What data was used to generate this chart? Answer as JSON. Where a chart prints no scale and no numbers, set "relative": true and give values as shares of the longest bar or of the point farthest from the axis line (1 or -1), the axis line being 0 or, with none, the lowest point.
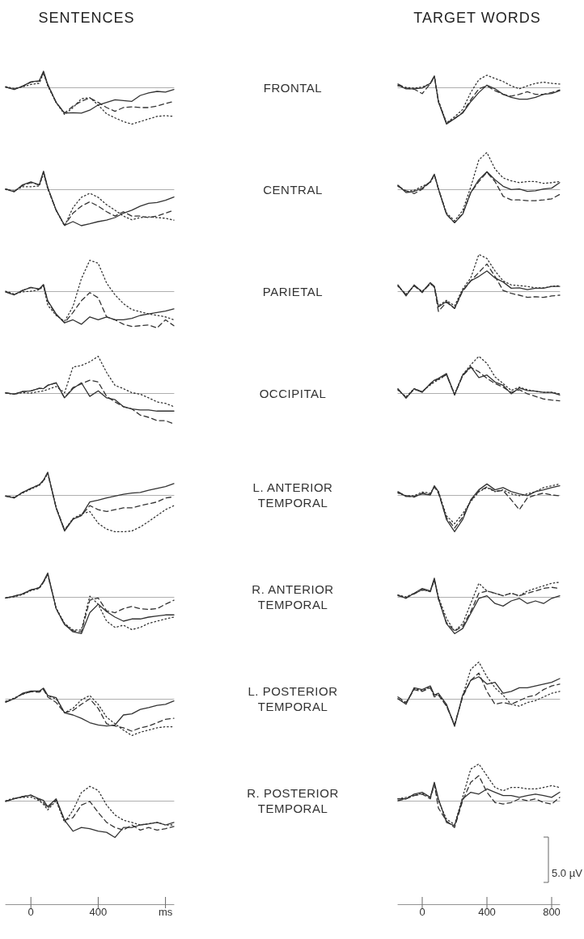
{
  "chart_data": [
    {
      "type": "line",
      "relative": true,
      "annotations": [
        "SENTENCES"
      ],
      "x": [
        -150,
        -100,
        -50,
        0,
        50,
        75,
        100,
        150,
        200,
        250,
        300,
        350,
        400,
        450,
        500,
        550,
        600,
        650,
        700,
        750,
        800,
        850
      ],
      "xlim": [
        -150,
        850
      ],
      "tick_labels": false,
      "series": [
        {
          "color": "#333333",
          "line_style": "solid",
          "values": [
            0.01,
            -0.06,
            0.03,
            0.15,
            0.18,
            0.44,
            0.08,
            -0.41,
            -0.7,
            -0.69,
            -0.7,
            -0.62,
            -0.48,
            -0.41,
            -0.34,
            -0.36,
            -0.38,
            -0.22,
            -0.15,
            -0.11,
            -0.13,
            -0.06
          ]
        },
        {
          "color": "#333333",
          "line_style": "dashed",
          "values": [
            0.01,
            -0.05,
            0.03,
            0.14,
            0.17,
            0.4,
            0.07,
            -0.41,
            -0.7,
            -0.51,
            -0.38,
            -0.29,
            -0.41,
            -0.55,
            -0.65,
            -0.55,
            -0.53,
            -0.55,
            -0.55,
            -0.51,
            -0.44,
            -0.38
          ]
        },
        {
          "color": "#333333",
          "line_style": "dotted",
          "values": [
            0.02,
            -0.03,
            0.01,
            0.08,
            0.11,
            0.39,
            0.04,
            -0.41,
            -0.74,
            -0.55,
            -0.31,
            -0.28,
            -0.48,
            -0.72,
            -0.83,
            -0.93,
            -1.0,
            -0.93,
            -0.86,
            -0.79,
            -0.77,
            -0.79
          ]
        }
      ]
    },
    {
      "type": "line",
      "relative": true,
      "annotations": [
        "TARGET WORDS"
      ],
      "x": [
        -150,
        -100,
        -50,
        0,
        50,
        75,
        100,
        150,
        200,
        250,
        300,
        350,
        400,
        450,
        500,
        550,
        600,
        650,
        700,
        750,
        800,
        850
      ],
      "xlim": [
        -150,
        850
      ],
      "tick_labels": false,
      "series": [
        {
          "color": "#333333",
          "line_style": "solid",
          "values": [
            0.06,
            -0.04,
            -0.04,
            -0.02,
            0.11,
            0.31,
            -0.39,
            -1.0,
            -0.85,
            -0.7,
            -0.39,
            -0.14,
            0.06,
            -0.04,
            -0.19,
            -0.27,
            -0.32,
            -0.32,
            -0.27,
            -0.19,
            -0.17,
            -0.09
          ]
        },
        {
          "color": "#333333",
          "line_style": "dashed",
          "values": [
            0.09,
            -0.02,
            -0.05,
            -0.17,
            0.1,
            0.3,
            -0.39,
            -0.97,
            -0.85,
            -0.68,
            -0.34,
            -0.04,
            0.04,
            -0.09,
            -0.19,
            -0.24,
            -0.19,
            -0.12,
            -0.19,
            -0.19,
            -0.14,
            -0.07
          ]
        },
        {
          "color": "#333333",
          "line_style": "dotted",
          "values": [
            0.04,
            0.0,
            -0.02,
            0.01,
            0.1,
            0.29,
            -0.35,
            -0.97,
            -0.8,
            -0.6,
            -0.14,
            0.21,
            0.33,
            0.24,
            0.16,
            0.04,
            -0.04,
            0.04,
            0.11,
            0.14,
            0.11,
            0.09
          ]
        }
      ]
    },
    {
      "type": "line",
      "relative": true,
      "x": [
        -150,
        -100,
        -50,
        0,
        50,
        75,
        100,
        150,
        200,
        250,
        300,
        350,
        400,
        450,
        500,
        550,
        600,
        650,
        700,
        750,
        800,
        850
      ],
      "xlim": [
        -150,
        850
      ],
      "tick_labels": false,
      "series": [
        {
          "color": "#333333",
          "line_style": "solid",
          "values": [
            0.01,
            -0.07,
            0.12,
            0.2,
            0.12,
            0.49,
            0.05,
            -0.57,
            -0.98,
            -0.88,
            -0.99,
            -0.94,
            -0.88,
            -0.84,
            -0.77,
            -0.65,
            -0.57,
            -0.46,
            -0.38,
            -0.36,
            -0.3,
            -0.21
          ]
        },
        {
          "color": "#333333",
          "line_style": "dashed",
          "values": [
            0.01,
            -0.06,
            0.1,
            0.18,
            0.12,
            0.47,
            0.04,
            -0.57,
            -0.98,
            -0.65,
            -0.46,
            -0.34,
            -0.46,
            -0.61,
            -0.73,
            -0.61,
            -0.73,
            -0.73,
            -0.77,
            -0.73,
            -0.65,
            -0.57
          ]
        },
        {
          "color": "#333333",
          "line_style": "dotted",
          "values": [
            -0.01,
            -0.05,
            0.07,
            0.07,
            0.09,
            0.43,
            0.01,
            -0.57,
            -1.0,
            -0.5,
            -0.22,
            -0.11,
            -0.22,
            -0.42,
            -0.57,
            -0.73,
            -0.83,
            -0.77,
            -0.75,
            -0.77,
            -0.79,
            -0.84
          ]
        }
      ]
    },
    {
      "type": "line",
      "relative": true,
      "x": [
        -150,
        -100,
        -50,
        0,
        50,
        75,
        100,
        150,
        200,
        250,
        300,
        350,
        400,
        450,
        500,
        550,
        600,
        650,
        700,
        750,
        800,
        850
      ],
      "xlim": [
        -150,
        850
      ],
      "tick_labels": false,
      "series": [
        {
          "color": "#333333",
          "line_style": "solid",
          "values": [
            0.11,
            -0.09,
            -0.06,
            0.03,
            0.21,
            0.41,
            0.01,
            -0.68,
            -0.91,
            -0.68,
            -0.09,
            0.26,
            0.48,
            0.26,
            0.08,
            -0.01,
            0.01,
            -0.06,
            -0.04,
            0.01,
            0.03,
            0.18
          ]
        },
        {
          "color": "#333333",
          "line_style": "dashed",
          "values": [
            0.08,
            -0.04,
            -0.12,
            0.0,
            0.2,
            0.4,
            0.0,
            -0.68,
            -0.91,
            -0.66,
            -0.09,
            0.21,
            0.46,
            0.21,
            -0.19,
            -0.29,
            -0.29,
            -0.31,
            -0.31,
            -0.29,
            -0.26,
            -0.14
          ]
        },
        {
          "color": "#333333",
          "line_style": "dotted",
          "values": [
            0.1,
            -0.06,
            -0.03,
            0.08,
            0.18,
            0.38,
            0.02,
            -0.64,
            -0.86,
            -0.58,
            0.06,
            0.8,
            1.0,
            0.55,
            0.31,
            0.23,
            0.18,
            0.21,
            0.21,
            0.16,
            0.18,
            0.21
          ]
        }
      ]
    },
    {
      "type": "line",
      "relative": true,
      "x": [
        -150,
        -100,
        -50,
        0,
        50,
        75,
        100,
        150,
        200,
        250,
        300,
        350,
        400,
        450,
        500,
        550,
        600,
        650,
        700,
        750,
        800,
        850
      ],
      "xlim": [
        -150,
        850
      ],
      "tick_labels": false,
      "series": [
        {
          "color": "#333333",
          "line_style": "solid",
          "values": [
            -0.02,
            -0.1,
            0.02,
            0.1,
            0.06,
            0.18,
            -0.26,
            -0.62,
            -0.86,
            -0.78,
            -0.9,
            -0.7,
            -0.78,
            -0.7,
            -0.78,
            -0.78,
            -0.74,
            -0.66,
            -0.62,
            -0.58,
            -0.54,
            -0.48
          ]
        },
        {
          "color": "#333333",
          "line_style": "dashed",
          "values": [
            -0.02,
            -0.1,
            0.02,
            0.1,
            0.06,
            0.16,
            -0.28,
            -0.64,
            -0.86,
            -0.58,
            -0.26,
            -0.04,
            -0.18,
            -0.7,
            -0.78,
            -0.9,
            -0.96,
            -0.94,
            -0.92,
            -1.0,
            -0.78,
            -0.94
          ]
        },
        {
          "color": "#333333",
          "line_style": "dotted",
          "values": [
            0.0,
            -0.08,
            -0.02,
            0.0,
            0.04,
            0.14,
            -0.38,
            -0.66,
            -0.82,
            -0.42,
            0.34,
            0.84,
            0.76,
            0.22,
            -0.1,
            -0.34,
            -0.5,
            -0.56,
            -0.62,
            -0.66,
            -0.7,
            -0.78
          ]
        }
      ]
    },
    {
      "type": "line",
      "relative": true,
      "x": [
        -150,
        -100,
        -50,
        0,
        50,
        75,
        100,
        150,
        200,
        250,
        300,
        350,
        400,
        450,
        500,
        550,
        600,
        650,
        700,
        750,
        800,
        850
      ],
      "xlim": [
        -150,
        850
      ],
      "tick_labels": false,
      "series": [
        {
          "color": "#333333",
          "line_style": "solid",
          "values": [
            0.17,
            -0.13,
            0.17,
            -0.02,
            0.23,
            0.13,
            -0.43,
            -0.28,
            -0.47,
            0.02,
            0.28,
            0.4,
            0.55,
            0.36,
            0.25,
            0.08,
            0.09,
            0.04,
            0.08,
            0.08,
            0.13,
            0.13
          ]
        },
        {
          "color": "#333333",
          "line_style": "dashed",
          "values": [
            0.15,
            -0.1,
            0.15,
            -0.04,
            0.21,
            0.11,
            -0.55,
            -0.3,
            -0.47,
            0.0,
            0.28,
            0.51,
            0.74,
            0.4,
            0.02,
            -0.06,
            -0.11,
            -0.17,
            -0.15,
            -0.17,
            -0.13,
            -0.11
          ]
        },
        {
          "color": "#333333",
          "line_style": "dotted",
          "values": [
            0.13,
            -0.08,
            0.14,
            0.0,
            0.2,
            0.12,
            -0.4,
            -0.25,
            -0.4,
            0.06,
            0.36,
            1.0,
            0.89,
            0.55,
            0.28,
            0.17,
            0.15,
            0.13,
            0.09,
            0.09,
            0.13,
            0.15
          ]
        }
      ]
    },
    {
      "type": "line",
      "relative": true,
      "x": [
        -150,
        -100,
        -50,
        0,
        50,
        75,
        100,
        150,
        200,
        250,
        300,
        350,
        400,
        450,
        500,
        550,
        600,
        650,
        700,
        750,
        800,
        850
      ],
      "xlim": [
        -150,
        850
      ],
      "tick_labels": false,
      "series": [
        {
          "color": "#333333",
          "line_style": "solid",
          "values": [
            0.01,
            -0.03,
            0.04,
            0.06,
            0.13,
            0.12,
            0.21,
            0.28,
            -0.13,
            0.12,
            0.28,
            -0.09,
            0.06,
            -0.13,
            -0.18,
            -0.37,
            -0.43,
            -0.46,
            -0.46,
            -0.49,
            -0.49,
            -0.49
          ]
        },
        {
          "color": "#333333",
          "line_style": "dashed",
          "values": [
            0.01,
            -0.03,
            0.04,
            0.06,
            0.13,
            0.12,
            0.21,
            0.28,
            -0.13,
            0.15,
            0.25,
            0.35,
            0.3,
            -0.09,
            -0.24,
            -0.37,
            -0.43,
            -0.6,
            -0.66,
            -0.75,
            -0.75,
            -0.84
          ]
        },
        {
          "color": "#333333",
          "line_style": "dotted",
          "values": [
            0.0,
            -0.03,
            0.01,
            0.0,
            0.04,
            0.06,
            0.1,
            0.18,
            0.01,
            0.71,
            0.75,
            0.85,
            1.0,
            0.56,
            0.21,
            0.12,
            0.01,
            -0.03,
            -0.13,
            -0.24,
            -0.28,
            -0.37
          ]
        }
      ]
    },
    {
      "type": "line",
      "relative": true,
      "x": [
        -150,
        -100,
        -50,
        0,
        50,
        75,
        100,
        150,
        200,
        250,
        300,
        350,
        400,
        450,
        500,
        550,
        600,
        650,
        700,
        750,
        800,
        850
      ],
      "xlim": [
        -150,
        850
      ],
      "tick_labels": false,
      "series": [
        {
          "color": "#333333",
          "line_style": "solid",
          "values": [
            0.12,
            -0.14,
            0.12,
            0.02,
            0.26,
            0.35,
            0.4,
            0.53,
            -0.05,
            0.49,
            0.72,
            0.42,
            0.49,
            0.3,
            0.21,
            -0.02,
            0.14,
            0.07,
            0.05,
            0.02,
            0.02,
            -0.05
          ]
        },
        {
          "color": "#333333",
          "line_style": "dashed",
          "values": [
            0.1,
            -0.12,
            0.1,
            0.04,
            0.24,
            0.33,
            0.38,
            0.5,
            -0.05,
            0.47,
            0.7,
            0.58,
            0.4,
            0.26,
            0.16,
            0.02,
            0.09,
            -0.02,
            -0.09,
            -0.16,
            -0.19,
            -0.21
          ]
        },
        {
          "color": "#333333",
          "line_style": "dotted",
          "values": [
            0.08,
            -0.1,
            0.12,
            0.04,
            0.22,
            0.3,
            0.36,
            0.5,
            -0.02,
            0.5,
            0.77,
            1.0,
            0.81,
            0.44,
            0.26,
            0.07,
            0.16,
            0.09,
            0.05,
            0.02,
            0.02,
            -0.02
          ]
        }
      ]
    },
    {
      "type": "line",
      "relative": true,
      "x": [
        -150,
        -100,
        -50,
        0,
        50,
        75,
        100,
        150,
        200,
        250,
        300,
        350,
        400,
        450,
        500,
        550,
        600,
        650,
        700,
        750,
        800,
        850
      ],
      "xlim": [
        -150,
        850
      ],
      "tick_labels": false,
      "series": [
        {
          "color": "#333333",
          "line_style": "solid",
          "values": [
            -0.03,
            -0.08,
            0.07,
            0.18,
            0.28,
            0.4,
            0.62,
            -0.35,
            -0.98,
            -0.66,
            -0.56,
            -0.19,
            -0.14,
            -0.08,
            -0.03,
            0.02,
            0.05,
            0.07,
            0.13,
            0.18,
            0.23,
            0.31
          ]
        },
        {
          "color": "#333333",
          "line_style": "dashed",
          "values": [
            -0.03,
            -0.08,
            0.07,
            0.18,
            0.28,
            0.4,
            0.6,
            -0.35,
            -0.95,
            -0.66,
            -0.56,
            -0.29,
            -0.4,
            -0.45,
            -0.4,
            -0.35,
            -0.35,
            -0.29,
            -0.24,
            -0.19,
            -0.08,
            -0.05
          ]
        },
        {
          "color": "#333333",
          "line_style": "dotted",
          "values": [
            -0.03,
            -0.06,
            0.05,
            0.16,
            0.26,
            0.38,
            0.58,
            -0.33,
            -0.95,
            -0.64,
            -0.52,
            -0.45,
            -0.77,
            -0.93,
            -1.0,
            -1.0,
            -0.98,
            -0.87,
            -0.72,
            -0.56,
            -0.4,
            -0.29
          ]
        }
      ]
    },
    {
      "type": "line",
      "relative": true,
      "x": [
        -150,
        -100,
        -50,
        0,
        50,
        75,
        100,
        150,
        200,
        250,
        300,
        350,
        400,
        450,
        500,
        550,
        600,
        650,
        700,
        750,
        800,
        850
      ],
      "xlim": [
        -150,
        850
      ],
      "tick_labels": false,
      "series": [
        {
          "color": "#333333",
          "line_style": "solid",
          "values": [
            0.09,
            -0.04,
            -0.04,
            0.03,
            0.0,
            0.25,
            0.09,
            -0.67,
            -1.0,
            -0.67,
            -0.13,
            0.14,
            0.3,
            0.14,
            0.2,
            0.09,
            0.03,
            -0.02,
            0.09,
            0.14,
            0.2,
            0.25
          ]
        },
        {
          "color": "#333333",
          "line_style": "dashed",
          "values": [
            0.07,
            -0.02,
            -0.06,
            0.05,
            0.02,
            0.22,
            0.05,
            -0.62,
            -0.9,
            -0.6,
            -0.15,
            0.1,
            0.22,
            0.1,
            0.12,
            -0.13,
            -0.4,
            -0.08,
            0.0,
            0.05,
            0.0,
            -0.02
          ]
        },
        {
          "color": "#333333",
          "line_style": "dotted",
          "values": [
            0.05,
            -0.02,
            -0.02,
            0.08,
            0.05,
            0.22,
            0.1,
            -0.57,
            -0.78,
            -0.51,
            -0.18,
            0.09,
            0.2,
            0.09,
            0.14,
            0.03,
            -0.02,
            0.03,
            0.09,
            0.2,
            0.25,
            0.3
          ]
        }
      ]
    },
    {
      "type": "line",
      "relative": true,
      "x": [
        -150,
        -100,
        -50,
        0,
        50,
        75,
        100,
        150,
        200,
        250,
        300,
        350,
        400,
        450,
        500,
        550,
        600,
        650,
        700,
        750,
        800,
        850
      ],
      "xlim": [
        -150,
        850
      ],
      "tick_labels": false,
      "series": [
        {
          "color": "#333333",
          "line_style": "solid",
          "values": [
            -0.03,
            0.02,
            0.08,
            0.19,
            0.25,
            0.42,
            0.65,
            -0.32,
            -0.75,
            -0.95,
            -1.0,
            -0.43,
            -0.2,
            -0.4,
            -0.55,
            -0.66,
            -0.6,
            -0.6,
            -0.55,
            -0.52,
            -0.49,
            -0.49
          ]
        },
        {
          "color": "#333333",
          "line_style": "dashed",
          "values": [
            -0.03,
            0.02,
            0.08,
            0.19,
            0.25,
            0.4,
            0.62,
            -0.32,
            -0.75,
            -0.92,
            -0.95,
            -0.09,
            -0.03,
            -0.38,
            -0.43,
            -0.32,
            -0.26,
            -0.32,
            -0.34,
            -0.32,
            -0.2,
            -0.09
          ]
        },
        {
          "color": "#333333",
          "line_style": "dotted",
          "values": [
            -0.03,
            0.0,
            0.06,
            0.17,
            0.23,
            0.4,
            0.6,
            -0.3,
            -0.72,
            -0.9,
            -0.9,
            0.02,
            -0.2,
            -0.66,
            -0.83,
            -0.77,
            -0.89,
            -0.83,
            -0.72,
            -0.66,
            -0.6,
            -0.55
          ]
        }
      ]
    },
    {
      "type": "line",
      "relative": true,
      "x": [
        -150,
        -100,
        -50,
        0,
        50,
        75,
        100,
        150,
        200,
        250,
        300,
        350,
        400,
        450,
        500,
        550,
        600,
        650,
        700,
        750,
        800,
        850
      ],
      "xlim": [
        -150,
        850
      ],
      "tick_labels": false,
      "series": [
        {
          "color": "#333333",
          "line_style": "solid",
          "values": [
            0.05,
            -0.04,
            0.1,
            0.23,
            0.16,
            0.51,
            -0.04,
            -0.73,
            -1.0,
            -0.86,
            -0.45,
            -0.04,
            0.03,
            -0.18,
            -0.25,
            -0.11,
            -0.04,
            -0.18,
            -0.11,
            -0.18,
            -0.04,
            0.03
          ]
        },
        {
          "color": "#333333",
          "line_style": "dashed",
          "values": [
            0.03,
            -0.02,
            0.08,
            0.2,
            0.14,
            0.47,
            -0.06,
            -0.7,
            -0.93,
            -0.8,
            -0.4,
            0.1,
            0.16,
            0.1,
            0.03,
            0.1,
            0.03,
            0.1,
            0.16,
            0.23,
            0.26,
            0.23
          ]
        },
        {
          "color": "#333333",
          "line_style": "dotted",
          "values": [
            0.05,
            0.0,
            0.1,
            0.18,
            0.16,
            0.45,
            0.0,
            -0.59,
            -0.93,
            -0.73,
            -0.18,
            0.37,
            0.16,
            0.1,
            0.03,
            0.1,
            0.03,
            0.16,
            0.23,
            0.3,
            0.37,
            0.4
          ]
        }
      ]
    },
    {
      "type": "line",
      "relative": true,
      "x": [
        -150,
        -100,
        -50,
        0,
        50,
        75,
        100,
        150,
        200,
        250,
        300,
        350,
        400,
        450,
        500,
        550,
        600,
        650,
        700,
        750,
        800,
        850
      ],
      "xlim": [
        -150,
        850
      ],
      "tick_labels": false,
      "series": [
        {
          "color": "#333333",
          "line_style": "solid",
          "values": [
            -0.09,
            0.0,
            0.15,
            0.21,
            0.21,
            0.29,
            0.09,
            0.03,
            -0.38,
            -0.44,
            -0.53,
            -0.65,
            -0.71,
            -0.74,
            -0.71,
            -0.44,
            -0.41,
            -0.29,
            -0.24,
            -0.18,
            -0.15,
            -0.06
          ]
        },
        {
          "color": "#333333",
          "line_style": "dashed",
          "values": [
            -0.09,
            0.0,
            0.13,
            0.19,
            0.18,
            0.25,
            0.05,
            -0.1,
            -0.38,
            -0.32,
            -0.15,
            0.0,
            -0.26,
            -0.68,
            -0.74,
            -0.79,
            -0.88,
            -0.79,
            -0.74,
            -0.65,
            -0.56,
            -0.53
          ]
        },
        {
          "color": "#333333",
          "line_style": "dotted",
          "values": [
            -0.07,
            0.02,
            0.12,
            0.2,
            0.2,
            0.27,
            0.08,
            0.0,
            -0.38,
            -0.26,
            -0.03,
            0.09,
            -0.15,
            -0.5,
            -0.68,
            -0.85,
            -1.0,
            -0.91,
            -0.85,
            -0.79,
            -0.76,
            -0.76
          ]
        }
      ]
    },
    {
      "type": "line",
      "relative": true,
      "x": [
        -150,
        -100,
        -50,
        0,
        50,
        75,
        100,
        150,
        200,
        250,
        300,
        350,
        400,
        450,
        500,
        550,
        600,
        650,
        700,
        750,
        800,
        850
      ],
      "xlim": [
        -150,
        850
      ],
      "tick_labels": false,
      "series": [
        {
          "color": "#333333",
          "line_style": "solid",
          "values": [
            0.0,
            -0.15,
            0.3,
            0.25,
            0.35,
            0.1,
            0.15,
            -0.15,
            -0.75,
            0.1,
            0.5,
            0.6,
            0.4,
            0.45,
            0.15,
            0.2,
            0.3,
            0.3,
            0.35,
            0.4,
            0.45,
            0.55
          ]
        },
        {
          "color": "#333333",
          "line_style": "dashed",
          "values": [
            0.05,
            -0.1,
            0.25,
            0.2,
            0.3,
            0.05,
            0.1,
            -0.2,
            -0.7,
            0.05,
            0.5,
            0.7,
            0.2,
            -0.15,
            -0.1,
            -0.15,
            -0.05,
            0.05,
            0.1,
            0.25,
            0.35,
            0.4
          ]
        },
        {
          "color": "#333333",
          "line_style": "dotted",
          "values": [
            0.0,
            -0.12,
            0.28,
            0.22,
            0.32,
            0.08,
            0.12,
            -0.18,
            -0.72,
            0.08,
            0.8,
            1.0,
            0.6,
            0.3,
            0.1,
            -0.15,
            -0.2,
            -0.1,
            -0.05,
            0.05,
            0.15,
            0.2
          ]
        }
      ]
    },
    {
      "type": "line",
      "relative": true,
      "x": [
        -150,
        -100,
        -50,
        0,
        50,
        75,
        100,
        150,
        200,
        250,
        300,
        350,
        400,
        450,
        500,
        550,
        600,
        650,
        700,
        750,
        800,
        850
      ],
      "xlim": [
        -150,
        850
      ],
      "tick_labels": "x",
      "xticks": [
        0,
        400,
        {
          "value": 800,
          "label": "ms"
        }
      ],
      "series": [
        {
          "color": "#333333",
          "line_style": "solid",
          "values": [
            -0.02,
            0.05,
            0.11,
            0.15,
            0.05,
            0.01,
            -0.16,
            0.05,
            -0.53,
            -0.83,
            -0.73,
            -0.76,
            -0.83,
            -0.86,
            -1.0,
            -0.73,
            -0.73,
            -0.66,
            -0.63,
            -0.59,
            -0.66,
            -0.59
          ]
        },
        {
          "color": "#333333",
          "line_style": "dashed",
          "values": [
            -0.02,
            0.05,
            0.11,
            0.15,
            0.03,
            -0.05,
            -0.2,
            0.02,
            -0.53,
            -0.46,
            -0.12,
            -0.02,
            -0.32,
            -0.59,
            -0.73,
            -0.8,
            -0.66,
            -0.8,
            -0.73,
            -0.8,
            -0.76,
            -0.7
          ]
        },
        {
          "color": "#333333",
          "line_style": "dotted",
          "values": [
            0.0,
            0.07,
            0.09,
            0.1,
            0.0,
            -0.1,
            -0.25,
            0.0,
            -0.59,
            -0.26,
            0.22,
            0.39,
            0.28,
            -0.12,
            -0.39,
            -0.53,
            -0.59,
            -0.66,
            -0.63,
            -0.59,
            -0.66,
            -0.66
          ]
        }
      ]
    },
    {
      "type": "line",
      "relative": true,
      "annotations": [
        "5.0 µV"
      ],
      "x": [
        -150,
        -100,
        -50,
        0,
        50,
        75,
        100,
        150,
        200,
        250,
        300,
        350,
        400,
        450,
        500,
        550,
        600,
        650,
        700,
        750,
        800,
        850
      ],
      "xlim": [
        -150,
        850
      ],
      "tick_labels": "x",
      "xticks": [
        0,
        400,
        800
      ],
      "series": [
        {
          "color": "#333333",
          "line_style": "solid",
          "values": [
            0.05,
            0.05,
            0.18,
            0.23,
            0.09,
            0.5,
            0.05,
            -0.59,
            -0.68,
            0.05,
            0.23,
            0.18,
            0.32,
            0.23,
            0.14,
            0.14,
            0.09,
            0.14,
            0.18,
            0.14,
            0.09,
            0.23
          ]
        },
        {
          "color": "#333333",
          "line_style": "dashed",
          "values": [
            0.0,
            0.05,
            0.14,
            0.18,
            0.05,
            0.45,
            -0.2,
            -0.55,
            -0.73,
            0.0,
            0.5,
            0.68,
            0.23,
            -0.05,
            -0.09,
            -0.05,
            0.05,
            0.0,
            0.05,
            -0.05,
            -0.09,
            0.09
          ]
        },
        {
          "color": "#333333",
          "line_style": "dotted",
          "values": [
            0.05,
            0.09,
            0.14,
            0.2,
            0.09,
            0.45,
            0.0,
            -0.5,
            -0.65,
            0.1,
            0.86,
            1.0,
            0.68,
            0.36,
            0.27,
            0.36,
            0.36,
            0.32,
            0.32,
            0.36,
            0.41,
            0.36
          ]
        }
      ]
    },
    {
      "type": "other",
      "annotations": [
        "FRONTAL",
        "CENTRAL",
        "PARIETAL",
        "OCCIPITAL",
        "L. ANTERIOR TEMPORAL",
        "R. ANTERIOR TEMPORAL",
        "L. POSTERIOR TEMPORAL",
        "R. POSTERIOR TEMPORAL"
      ]
    }
  ]
}
